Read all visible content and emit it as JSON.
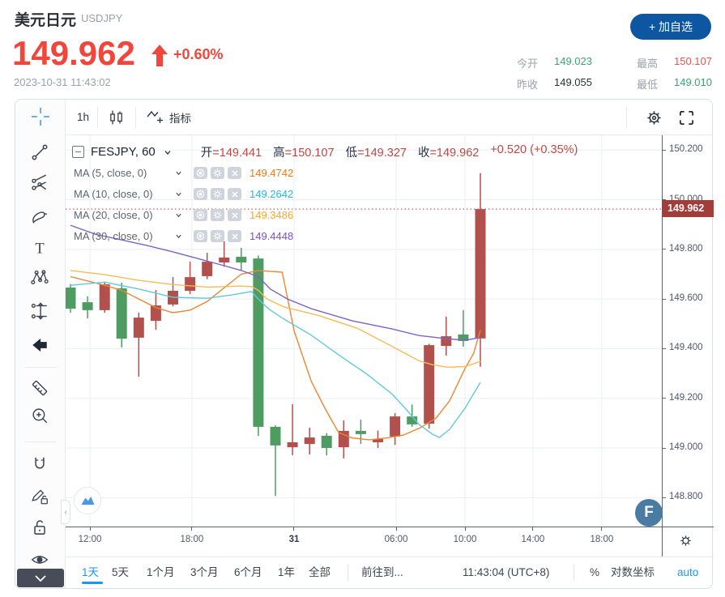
{
  "header": {
    "title": "美元日元",
    "symbol": "USDJPY",
    "price": "149.962",
    "change": "+0.60%",
    "timestamp": "2023-10-31 11:43:02",
    "add_button": "+ 加自选",
    "stats": [
      {
        "label": "今开",
        "value": "149.023",
        "color": "green"
      },
      {
        "label": "最高",
        "value": "150.107",
        "color": "red"
      },
      {
        "label": "昨收",
        "value": "149.055",
        "color": "dark"
      },
      {
        "label": "最低",
        "value": "149.010",
        "color": "green"
      }
    ]
  },
  "toolbar": {
    "interval": "1h",
    "indicator": "指标"
  },
  "legend": {
    "series": "FESJPY, 60",
    "ohlc": [
      {
        "label": "开",
        "value": "=149.441"
      },
      {
        "label": "高",
        "value": "=150.107"
      },
      {
        "label": "低",
        "value": "=149.327"
      },
      {
        "label": "收",
        "value": "=149.962"
      }
    ],
    "change": "+0.520 (+0.35%)",
    "mas": [
      {
        "label": "MA (5, close, 0)",
        "value": "149.4742",
        "text_color": "#ee7a1d",
        "line_color": "#ef8532"
      },
      {
        "label": "MA (10, close, 0)",
        "value": "149.2642",
        "text_color": "#29b7d3",
        "line_color": "#62c9dd"
      },
      {
        "label": "MA (20, close, 0)",
        "value": "149.3486",
        "text_color": "#f8a72b",
        "line_color": "#f6bc55"
      },
      {
        "label": "MA (30, close, 0)",
        "value": "149.4448",
        "text_color": "#7a52c7",
        "line_color": "#7e62c4"
      }
    ]
  },
  "chart_data": {
    "type": "candlestick",
    "symbol": "FESJPY",
    "interval_minutes": 60,
    "up_color": "#b1504d",
    "down_color": "#4f9c62",
    "current_price": 149.962,
    "current_price_label": "149.962",
    "price_ticks": [
      {
        "label": "150.200",
        "price": 150.2
      },
      {
        "label": "150.000",
        "price": 150.0
      },
      {
        "label": "149.800",
        "price": 149.8
      },
      {
        "label": "149.600",
        "price": 149.6
      },
      {
        "label": "149.400",
        "price": 149.4
      },
      {
        "label": "149.200",
        "price": 149.2
      },
      {
        "label": "149.000",
        "price": 149.0
      },
      {
        "label": "148.800",
        "price": 148.8
      }
    ],
    "time_ticks": [
      {
        "label": "12:00",
        "i": 1.14,
        "bold": false
      },
      {
        "label": "18:00",
        "i": 7.11,
        "bold": false
      },
      {
        "label": "31",
        "i": 13.09,
        "bold": true
      },
      {
        "label": "06:00",
        "i": 19.07,
        "bold": false
      },
      {
        "label": "10:00",
        "i": 23.1,
        "bold": false
      },
      {
        "label": "14:00",
        "i": 27.08,
        "bold": false
      },
      {
        "label": "18:00",
        "i": 31.11,
        "bold": false
      }
    ],
    "candles": [
      [
        149.646,
        149.66,
        149.545,
        149.561
      ],
      [
        149.587,
        149.61,
        149.522,
        149.555
      ],
      [
        149.555,
        149.669,
        149.545,
        149.659
      ],
      [
        149.643,
        149.666,
        149.405,
        149.44
      ],
      [
        149.444,
        149.545,
        149.287,
        149.525
      ],
      [
        149.512,
        149.636,
        149.476,
        149.574
      ],
      [
        149.578,
        149.688,
        149.57,
        149.633
      ],
      [
        149.633,
        149.75,
        149.62,
        149.688
      ],
      [
        149.692,
        149.786,
        149.68,
        149.75
      ],
      [
        149.747,
        149.832,
        149.73,
        149.767
      ],
      [
        149.77,
        149.806,
        149.715,
        149.747
      ],
      [
        149.763,
        149.775,
        149.049,
        149.085
      ],
      [
        149.085,
        149.09,
        148.807,
        149.01
      ],
      [
        149.003,
        149.176,
        148.971,
        149.023
      ],
      [
        149.016,
        149.082,
        148.974,
        149.042
      ],
      [
        149.049,
        149.06,
        148.97,
        149.0
      ],
      [
        149.003,
        149.111,
        148.958,
        149.069
      ],
      [
        149.069,
        149.114,
        149.016,
        149.056
      ],
      [
        149.023,
        149.07,
        149.0,
        149.036
      ],
      [
        149.046,
        149.14,
        149.013,
        149.127
      ],
      [
        149.127,
        149.175,
        149.085,
        149.095
      ],
      [
        149.098,
        149.42,
        149.078,
        149.414
      ],
      [
        149.411,
        149.529,
        149.372,
        149.45
      ],
      [
        149.457,
        149.555,
        149.408,
        149.431
      ],
      [
        149.441,
        150.107,
        149.327,
        149.962
      ]
    ],
    "ma_lines": [
      {
        "name": "MA5",
        "line_color": "#ef8532",
        "points": [
          [
            0,
            149.69
          ],
          [
            2,
            149.655
          ],
          [
            3,
            149.635
          ],
          [
            4,
            149.6
          ],
          [
            5,
            149.565
          ],
          [
            6,
            149.545
          ],
          [
            7,
            149.555
          ],
          [
            8,
            149.59
          ],
          [
            9,
            149.645
          ],
          [
            10,
            149.7
          ],
          [
            11,
            149.715
          ],
          [
            12.4,
            149.708
          ],
          [
            13.1,
            149.47
          ],
          [
            14.1,
            149.268
          ],
          [
            14.9,
            149.16
          ],
          [
            15.7,
            149.062
          ],
          [
            16.5,
            149.04
          ],
          [
            17.5,
            149.033
          ],
          [
            18.5,
            149.04
          ],
          [
            19.5,
            149.052
          ],
          [
            20.5,
            149.082
          ],
          [
            21.4,
            149.12
          ],
          [
            22.2,
            149.19
          ],
          [
            23.1,
            149.32
          ],
          [
            23.6,
            149.38
          ],
          [
            24,
            149.474
          ]
        ]
      },
      {
        "name": "MA10",
        "line_color": "#62c9dd",
        "points": [
          [
            0,
            149.655
          ],
          [
            2,
            149.668
          ],
          [
            4,
            149.64
          ],
          [
            6,
            149.607
          ],
          [
            8,
            149.603
          ],
          [
            9.5,
            149.617
          ],
          [
            10.6,
            149.63
          ],
          [
            11,
            149.6
          ],
          [
            11.6,
            149.56
          ],
          [
            12.5,
            149.519
          ],
          [
            14.1,
            149.454
          ],
          [
            15.7,
            149.375
          ],
          [
            17.3,
            149.3
          ],
          [
            18.8,
            149.219
          ],
          [
            19.6,
            149.16
          ],
          [
            20.4,
            149.095
          ],
          [
            21.2,
            149.055
          ],
          [
            21.6,
            149.042
          ],
          [
            22.2,
            149.075
          ],
          [
            23.1,
            149.16
          ],
          [
            24,
            149.2642
          ]
        ]
      },
      {
        "name": "MA20",
        "line_color": "#f6bc55",
        "points": [
          [
            0,
            149.715
          ],
          [
            2,
            149.698
          ],
          [
            4,
            149.675
          ],
          [
            6,
            149.658
          ],
          [
            8,
            149.648
          ],
          [
            10,
            149.652
          ],
          [
            10.6,
            149.65
          ],
          [
            11,
            149.635
          ],
          [
            11.5,
            149.6
          ],
          [
            12.5,
            149.568
          ],
          [
            14.5,
            149.534
          ],
          [
            16.8,
            149.482
          ],
          [
            18.8,
            149.41
          ],
          [
            20.4,
            149.351
          ],
          [
            21.2,
            149.335
          ],
          [
            22.1,
            149.325
          ],
          [
            23.1,
            149.328
          ],
          [
            24,
            149.3486
          ]
        ]
      },
      {
        "name": "MA30",
        "line_color": "#7e62c4",
        "points": [
          [
            0,
            149.897
          ],
          [
            1.5,
            149.86
          ],
          [
            3,
            149.838
          ],
          [
            4.5,
            149.815
          ],
          [
            6,
            149.79
          ],
          [
            7.5,
            149.762
          ],
          [
            9,
            149.734
          ],
          [
            10,
            149.715
          ],
          [
            11,
            149.69
          ],
          [
            11.7,
            149.64
          ],
          [
            12.7,
            149.6
          ],
          [
            14.1,
            149.561
          ],
          [
            16.5,
            149.512
          ],
          [
            18.8,
            149.48
          ],
          [
            20.4,
            149.453
          ],
          [
            22,
            149.44
          ],
          [
            23.1,
            149.434
          ],
          [
            24,
            149.4448
          ]
        ]
      }
    ]
  },
  "bottom": {
    "ranges": [
      "1天",
      "5天",
      "1个月",
      "3个月",
      "6个月",
      "1年",
      "全部"
    ],
    "active_range": "1天",
    "goto": "前往到...",
    "clock": "11:43:04 (UTC+8)",
    "percent": "%",
    "log": "对数坐标",
    "auto": "auto"
  },
  "brand": {
    "f_label": "F"
  }
}
